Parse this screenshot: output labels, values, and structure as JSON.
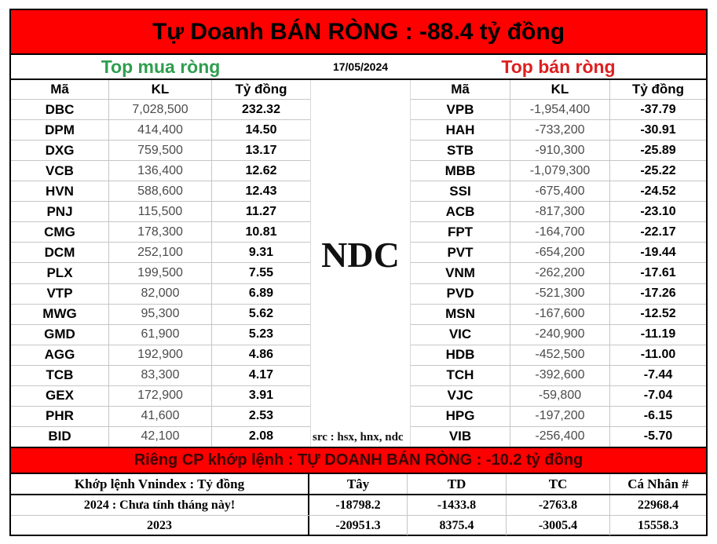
{
  "header": {
    "title": "Tự Doanh BÁN RÒNG : -88.4 tỷ đồng"
  },
  "subheader": {
    "buy_label": "Top mua ròng",
    "date": "17/05/2024",
    "sell_label": "Top bán ròng"
  },
  "watermark": "NDC",
  "source_note": "src : hsx, hnx, ndc",
  "mid_banner": {
    "text": "Riêng CP khớp lệnh : TỰ DOANH BÁN RÒNG : -10.2 tỷ đồng"
  },
  "colors": {
    "banner_bg": "#ff0000",
    "buy_green": "#2f9e4f",
    "sell_red": "#dd2020",
    "mid_banner_text": "#3a0505"
  },
  "chart_data": [
    {
      "type": "table",
      "title": "Top mua ròng",
      "columns": [
        "Mã",
        "KL",
        "Tỷ đồng"
      ],
      "rows": [
        [
          "DBC",
          "7,028,500",
          "232.32"
        ],
        [
          "DPM",
          "414,400",
          "14.50"
        ],
        [
          "DXG",
          "759,500",
          "13.17"
        ],
        [
          "VCB",
          "136,400",
          "12.62"
        ],
        [
          "HVN",
          "588,600",
          "12.43"
        ],
        [
          "PNJ",
          "115,500",
          "11.27"
        ],
        [
          "CMG",
          "178,300",
          "10.81"
        ],
        [
          "DCM",
          "252,100",
          "9.31"
        ],
        [
          "PLX",
          "199,500",
          "7.55"
        ],
        [
          "VTP",
          "82,000",
          "6.89"
        ],
        [
          "MWG",
          "95,300",
          "5.62"
        ],
        [
          "GMD",
          "61,900",
          "5.23"
        ],
        [
          "AGG",
          "192,900",
          "4.86"
        ],
        [
          "TCB",
          "83,300",
          "4.17"
        ],
        [
          "GEX",
          "172,900",
          "3.91"
        ],
        [
          "PHR",
          "41,600",
          "2.53"
        ],
        [
          "BID",
          "42,100",
          "2.08"
        ]
      ]
    },
    {
      "type": "table",
      "title": "Top bán ròng",
      "columns": [
        "Mã",
        "KL",
        "Tỷ đồng"
      ],
      "rows": [
        [
          "VPB",
          "-1,954,400",
          "-37.79"
        ],
        [
          "HAH",
          "-733,200",
          "-30.91"
        ],
        [
          "STB",
          "-910,300",
          "-25.89"
        ],
        [
          "MBB",
          "-1,079,300",
          "-25.22"
        ],
        [
          "SSI",
          "-675,400",
          "-24.52"
        ],
        [
          "ACB",
          "-817,300",
          "-23.10"
        ],
        [
          "FPT",
          "-164,700",
          "-22.17"
        ],
        [
          "PVT",
          "-654,200",
          "-19.44"
        ],
        [
          "VNM",
          "-262,200",
          "-17.61"
        ],
        [
          "PVD",
          "-521,300",
          "-17.26"
        ],
        [
          "MSN",
          "-167,600",
          "-12.52"
        ],
        [
          "VIC",
          "-240,900",
          "-11.19"
        ],
        [
          "HDB",
          "-452,500",
          "-11.00"
        ],
        [
          "TCH",
          "-392,600",
          "-7.44"
        ],
        [
          "VJC",
          "-59,800",
          "-7.04"
        ],
        [
          "HPG",
          "-197,200",
          "-6.15"
        ],
        [
          "VIB",
          "-256,400",
          "-5.70"
        ]
      ]
    },
    {
      "type": "table",
      "title": "Khớp lệnh Vnindex : Tỷ đồng",
      "columns": [
        "Khớp lệnh Vnindex : Tỷ đồng",
        "Tây",
        "TD",
        "TC",
        "Cá Nhân #"
      ],
      "rows": [
        [
          "2024 : Chưa tính tháng này!",
          "-18798.2",
          "-1433.8",
          "-2763.8",
          "22968.4"
        ],
        [
          "2023",
          "-20951.3",
          "8375.4",
          "-3005.4",
          "15558.3"
        ]
      ]
    }
  ]
}
